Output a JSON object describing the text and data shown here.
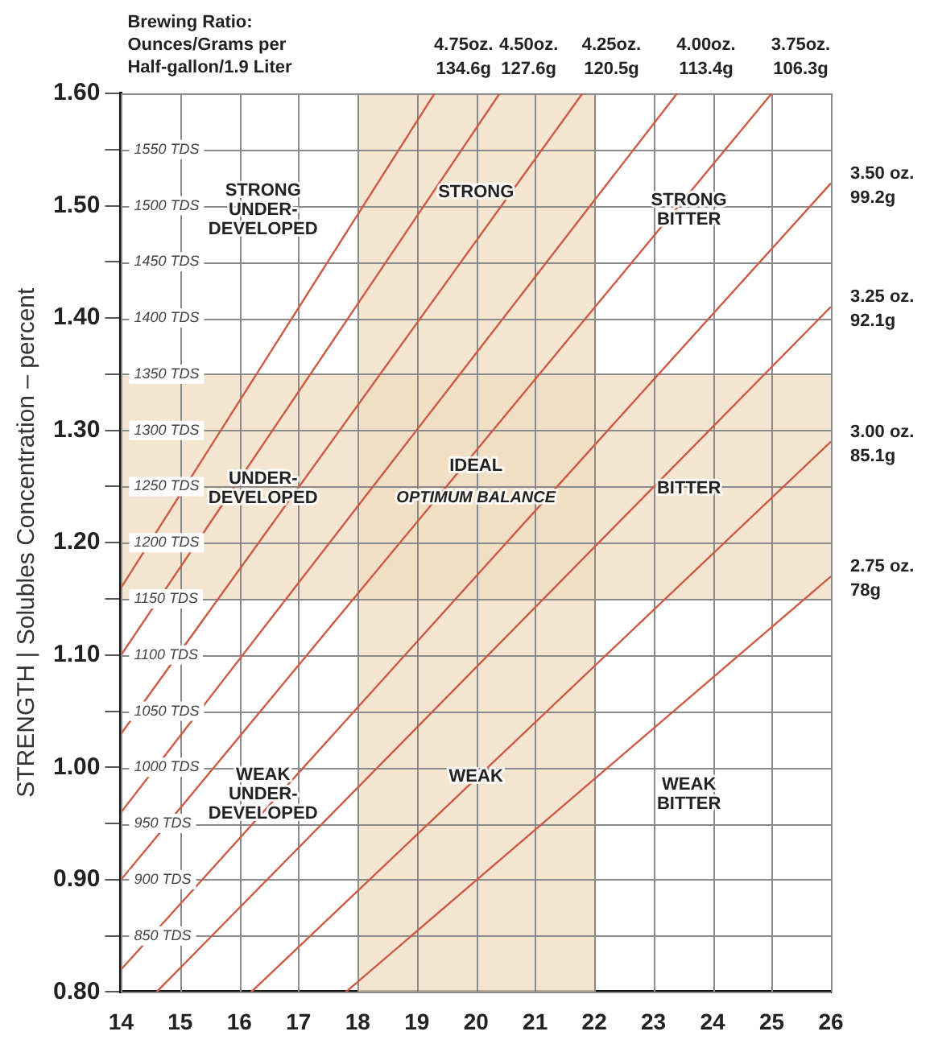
{
  "chart_data": {
    "type": "line",
    "ylabel": "STRENGTH | Solubles Concentration – percent",
    "legend_title": "Brewing Ratio:\nOunces/Grams per\nHalf-gallon/1.9 Liter",
    "legend": false,
    "marker": "none",
    "line_style": "solid",
    "grid": true,
    "xlim": [
      14,
      26
    ],
    "xticks": [
      14,
      15,
      16,
      17,
      18,
      19,
      20,
      21,
      22,
      23,
      24,
      25,
      26
    ],
    "ylim": [
      0.8,
      1.6
    ],
    "yticks": [
      {
        "value": 0.8,
        "label": "0.80"
      },
      {
        "value": 0.85,
        "label": null
      },
      {
        "value": 0.9,
        "label": "0.90"
      },
      {
        "value": 0.95,
        "label": null
      },
      {
        "value": 1.0,
        "label": "1.00"
      },
      {
        "value": 1.05,
        "label": null
      },
      {
        "value": 1.1,
        "label": "1.10"
      },
      {
        "value": 1.15,
        "label": null
      },
      {
        "value": 1.2,
        "label": "1.20"
      },
      {
        "value": 1.25,
        "label": null
      },
      {
        "value": 1.3,
        "label": "1.30"
      },
      {
        "value": 1.35,
        "label": null
      },
      {
        "value": 1.4,
        "label": "1.40"
      },
      {
        "value": 1.45,
        "label": null
      },
      {
        "value": 1.5,
        "label": "1.50"
      },
      {
        "value": 1.55,
        "label": null
      },
      {
        "value": 1.6,
        "label": "1.60"
      }
    ],
    "y2lim": [
      800,
      1600
    ],
    "y2ticks": [
      {
        "value": 850,
        "label": "850 TDS"
      },
      {
        "value": 900,
        "label": "900 TDS"
      },
      {
        "value": 950,
        "label": "950 TDS"
      },
      {
        "value": 1000,
        "label": "1000 TDS"
      },
      {
        "value": 1050,
        "label": "1050 TDS"
      },
      {
        "value": 1100,
        "label": "1100 TDS"
      },
      {
        "value": 1150,
        "label": "1150 TDS"
      },
      {
        "value": 1200,
        "label": "1200 TDS"
      },
      {
        "value": 1250,
        "label": "1250 TDS"
      },
      {
        "value": 1300,
        "label": "1300 TDS"
      },
      {
        "value": 1350,
        "label": "1350 TDS"
      },
      {
        "value": 1400,
        "label": "1400 TDS"
      },
      {
        "value": 1450,
        "label": "1450 TDS"
      },
      {
        "value": 1500,
        "label": "1500 TDS"
      },
      {
        "value": 1550,
        "label": "1550 TDS"
      }
    ],
    "bands": [
      {
        "axis": "x",
        "from": 18,
        "to": 22,
        "color": "#efdcc0"
      },
      {
        "axis": "y",
        "from": 1.15,
        "to": 1.35,
        "color": "#efdcc0"
      }
    ],
    "series": [
      {
        "name": "4.75oz. 134.6g",
        "color": "#cc5a44",
        "x": [
          14,
          19.3
        ],
        "values": [
          1.16,
          1.6
        ]
      },
      {
        "name": "4.50oz. 127.6g",
        "color": "#cc5a44",
        "x": [
          14,
          20.4
        ],
        "values": [
          1.1,
          1.6
        ]
      },
      {
        "name": "4.25oz. 120.5g",
        "color": "#cc5a44",
        "x": [
          14,
          21.8
        ],
        "values": [
          1.03,
          1.6
        ]
      },
      {
        "name": "4.00oz. 113.4g",
        "color": "#cc5a44",
        "x": [
          14,
          23.4
        ],
        "values": [
          0.96,
          1.6
        ]
      },
      {
        "name": "3.75oz. 106.3g",
        "color": "#cc5a44",
        "x": [
          14,
          25.0
        ],
        "values": [
          0.9,
          1.6
        ]
      },
      {
        "name": "3.50 oz. 99.2g",
        "color": "#cc5a44",
        "x": [
          14,
          26
        ],
        "values": [
          0.82,
          1.52
        ]
      },
      {
        "name": "3.25 oz. 92.1g",
        "color": "#cc5a44",
        "x": [
          14.6,
          26
        ],
        "values": [
          0.8,
          1.41
        ]
      },
      {
        "name": "3.00 oz. 85.1g",
        "color": "#cc5a44",
        "x": [
          16.2,
          26
        ],
        "values": [
          0.8,
          1.29
        ]
      },
      {
        "name": "2.75 oz. 78g",
        "color": "#cc5a44",
        "x": [
          17.8,
          26
        ],
        "values": [
          0.8,
          1.17
        ]
      }
    ],
    "annotations": [
      "STRONG\nUNDER-\nDEVELOPED",
      "STRONG",
      "STRONG\nBITTER",
      "UNDER-\nDEVELOPED",
      "IDEAL",
      "OPTIMUM BALANCE",
      "BITTER",
      "WEAK\nUNDER-\nDEVELOPED",
      "WEAK",
      "WEAK\nBITTER"
    ]
  }
}
